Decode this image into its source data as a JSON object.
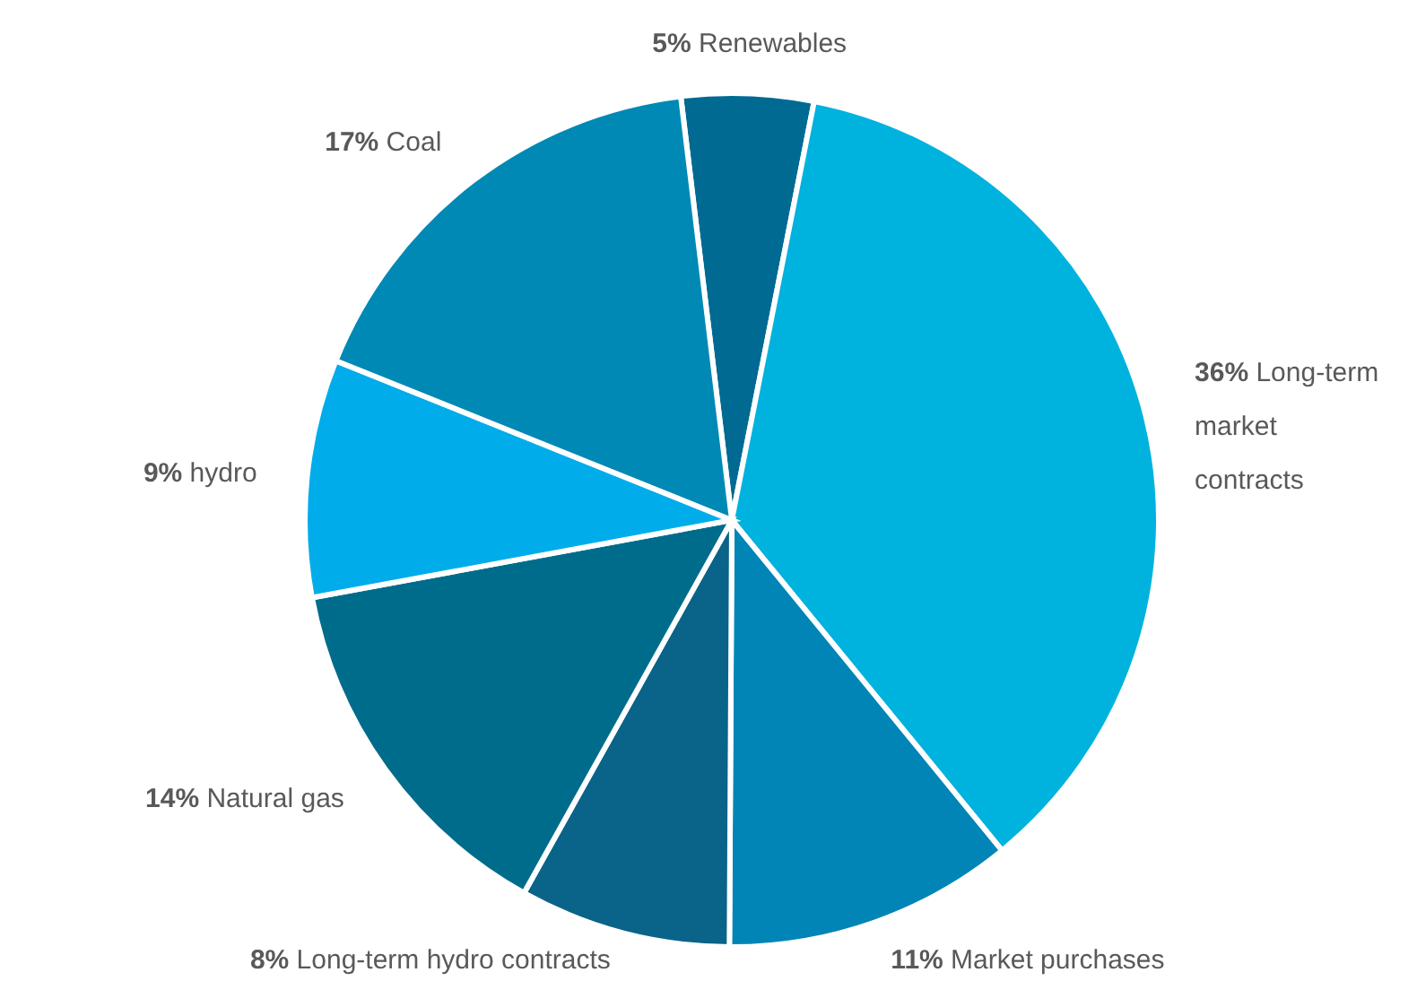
{
  "chart_data": {
    "type": "pie",
    "categories": [
      "Renewables",
      "Long-term market contracts",
      "Market purchases",
      "Long-term hydro contracts",
      "Natural gas",
      "hydro",
      "Coal"
    ],
    "values": [
      5,
      36,
      11,
      8,
      14,
      9,
      17
    ],
    "colors": [
      "#006a93",
      "#00b2de",
      "#0085b6",
      "#0a6388",
      "#006c8c",
      "#00adea",
      "#0089b5"
    ],
    "value_labels": [
      "5%",
      "36%",
      "11%",
      "8%",
      "14%",
      "9%",
      "17%"
    ]
  }
}
